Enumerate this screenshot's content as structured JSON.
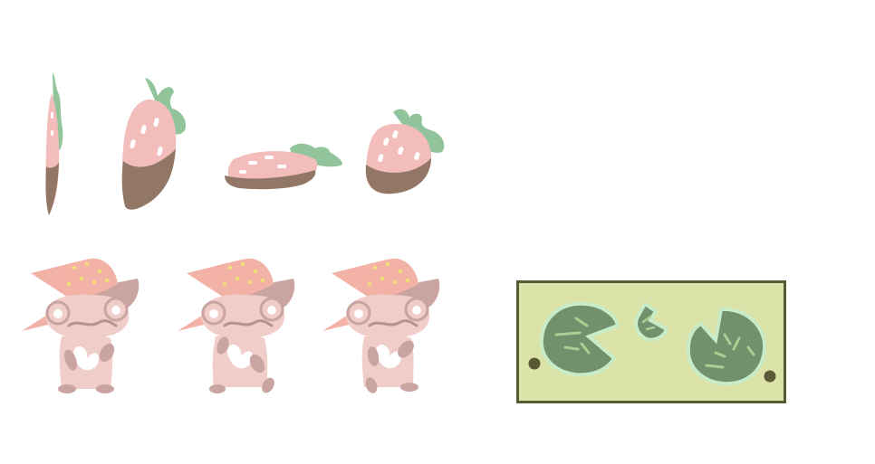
{
  "sprite_sheet": {
    "background": "#ffffff",
    "strawberry_frames": [
      "strawberry-frame-1",
      "strawberry-frame-2",
      "strawberry-frame-3",
      "strawberry-frame-4"
    ],
    "frog_frames": [
      "frog-witch-frame-1",
      "frog-witch-frame-2",
      "frog-witch-frame-3"
    ],
    "tile": "lily-pad-tile"
  },
  "colors": {
    "strawberry_pink": "#f2bdbb",
    "chocolate": "#927766",
    "leaf_green": "#92c49c",
    "seed_white": "#ffffff",
    "hat_pink": "#f2b3a6",
    "hat_dots": "#f4dc7a",
    "frog_body": "#f0cdc8",
    "frog_dark": "#c9a4a1",
    "tile_fill": "#dce3a8",
    "tile_border": "#585a36",
    "pad_green": "#73906c",
    "pad_glow": "#c9ecc8",
    "pad_vein": "#a9cf94"
  }
}
